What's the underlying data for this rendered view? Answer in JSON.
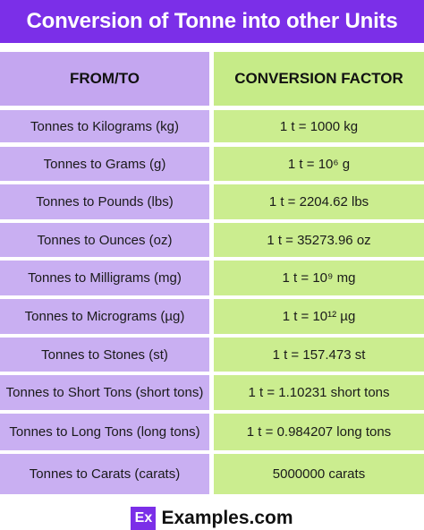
{
  "title": "Conversion of Tonne into other Units",
  "table": {
    "headers": {
      "from_to": "FROM/TO",
      "factor": "CONVERSION FACTOR"
    },
    "rows": [
      {
        "from": "Tonnes to Kilograms (kg)",
        "factor": "1 t = 1000 kg"
      },
      {
        "from": "Tonnes to Grams (g)",
        "factor": "1 t = 10⁶ g"
      },
      {
        "from": "Tonnes to Pounds (lbs)",
        "factor": "1 t = 2204.62 lbs"
      },
      {
        "from": "Tonnes to Ounces (oz)",
        "factor": "1 t = 35273.96 oz"
      },
      {
        "from": "Tonnes to Milligrams (mg)",
        "factor": "1 t = 10⁹ mg"
      },
      {
        "from": "Tonnes to Micrograms (µg)",
        "factor": "1 t = 10¹² µg"
      },
      {
        "from": "Tonnes to Stones (st)",
        "factor": "1 t = 157.473 st"
      },
      {
        "from": "Tonnes to Short Tons (short tons)",
        "factor": "1 t = 1.10231 short tons"
      },
      {
        "from": "Tonnes to Long Tons (long tons)",
        "factor": "1 t = 0.984207 long tons"
      },
      {
        "from": "Tonnes to Carats (carats)",
        "factor": "5000000 carats"
      }
    ]
  },
  "footer": {
    "logo_mark": "Ex",
    "brand": "Examples.com"
  },
  "colors": {
    "title_bg": "#7b2fe8",
    "left_col": "#c9aff2",
    "right_col": "#cbed8f"
  }
}
